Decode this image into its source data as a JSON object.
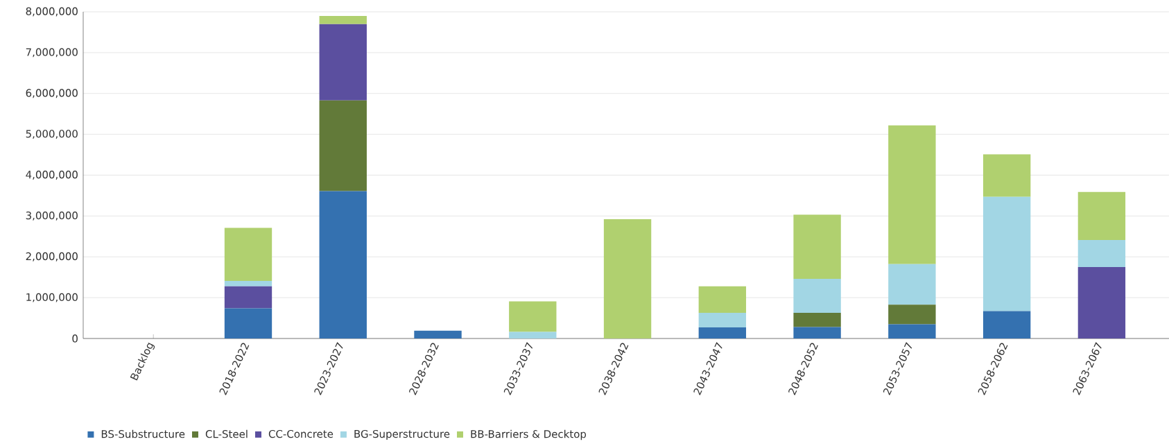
{
  "chart_data": {
    "type": "bar",
    "stacked": true,
    "categories": [
      "Backlog",
      "2018-2022",
      "2023-2027",
      "2028-2032",
      "2033-2037",
      "2038-2042",
      "2043-2047",
      "2048-2052",
      "2053-2057",
      "2058-2062",
      "2063-2067"
    ],
    "series": [
      {
        "name": "BS-Substructure",
        "color": "#3471b0",
        "values": [
          0,
          740000,
          3610000,
          190000,
          0,
          0,
          270000,
          280000,
          350000,
          670000,
          0
        ]
      },
      {
        "name": "CL-Steel",
        "color": "#627a39",
        "values": [
          0,
          0,
          2220000,
          0,
          0,
          0,
          0,
          350000,
          480000,
          0,
          0
        ]
      },
      {
        "name": "CC-Concrete",
        "color": "#5b4f9f",
        "values": [
          0,
          540000,
          1870000,
          0,
          0,
          0,
          0,
          0,
          0,
          0,
          1750000
        ]
      },
      {
        "name": "BG-Superstructure",
        "color": "#a2d6e4",
        "values": [
          0,
          130000,
          0,
          0,
          160000,
          0,
          360000,
          830000,
          990000,
          2800000,
          660000
        ]
      },
      {
        "name": "BB-Barriers & Decktop",
        "color": "#b0d06f",
        "values": [
          0,
          1300000,
          200000,
          0,
          750000,
          2920000,
          650000,
          1570000,
          3400000,
          1040000,
          1180000
        ]
      }
    ],
    "ylim": [
      0,
      8000000
    ],
    "yticks": [
      {
        "value": 0,
        "label": "0"
      },
      {
        "value": 1000000,
        "label": "1,000,000"
      },
      {
        "value": 2000000,
        "label": "2,000,000"
      },
      {
        "value": 3000000,
        "label": "3,000,000"
      },
      {
        "value": 4000000,
        "label": "4,000,000"
      },
      {
        "value": 5000000,
        "label": "5,000,000"
      },
      {
        "value": 6000000,
        "label": "6,000,000"
      },
      {
        "value": 7000000,
        "label": "7,000,000"
      },
      {
        "value": 8000000,
        "label": "8,000,000"
      }
    ],
    "grid": "y",
    "legend": "bottom left"
  }
}
